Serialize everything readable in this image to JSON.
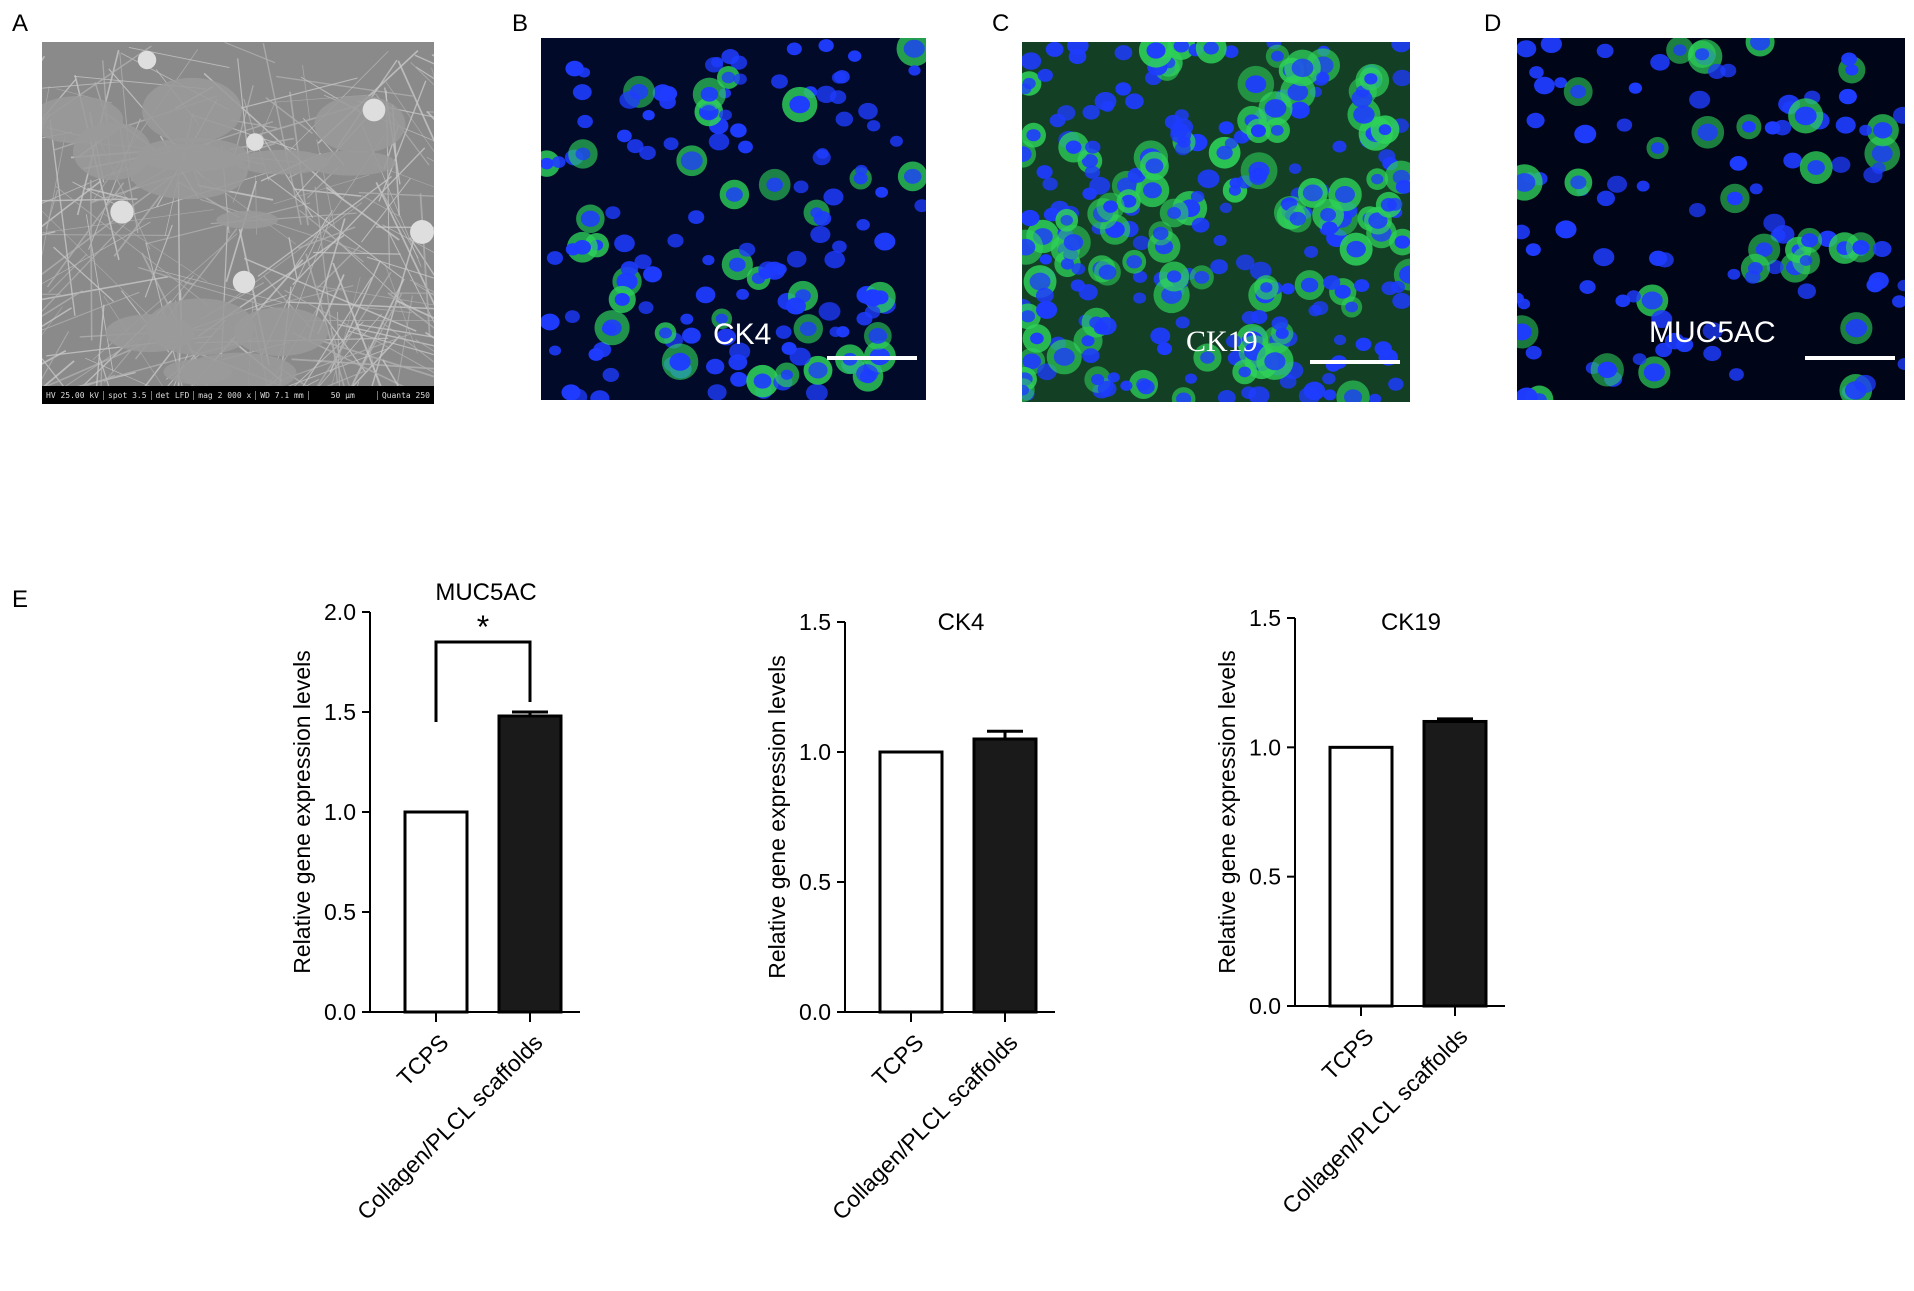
{
  "panels": {
    "A": {
      "letter": "A",
      "sem_info": [
        "HV",
        "spot",
        "det",
        "mag",
        "WD",
        "50 µm",
        "Quanta 250"
      ],
      "sem_values": [
        "25.00 kV",
        "3.5",
        "LFD",
        "2 000 x",
        "7.1 mm"
      ]
    },
    "B": {
      "letter": "B",
      "stain": "CK4"
    },
    "C": {
      "letter": "C",
      "stain": "CK19"
    },
    "D": {
      "letter": "D",
      "stain": "MUC5AC"
    },
    "E": {
      "letter": "E"
    }
  },
  "colors": {
    "nucleus": "#1e3cff",
    "stain": "#2ed15a",
    "background_dark": "#020a2a",
    "bar_fill": "#1a1a1a"
  },
  "chart_data": [
    {
      "type": "bar",
      "title": "MUC5AC",
      "ylabel": "Relative gene expression levels",
      "categories": [
        "TCPS",
        "Collagen/PLCL scaffolds"
      ],
      "values": [
        1.0,
        1.48
      ],
      "errors": [
        0,
        0.02
      ],
      "ylim": [
        0,
        2.0
      ],
      "yticks": [
        "0.0",
        "0.5",
        "1.0",
        "1.5",
        "2.0"
      ],
      "significance": "*"
    },
    {
      "type": "bar",
      "title": "CK4",
      "ylabel": "Relative gene expression levels",
      "categories": [
        "TCPS",
        "Collagen/PLCL scaffolds"
      ],
      "values": [
        1.0,
        1.05
      ],
      "errors": [
        0,
        0.03
      ],
      "ylim": [
        0,
        1.5
      ],
      "yticks": [
        "0.0",
        "0.5",
        "1.0",
        "1.5"
      ]
    },
    {
      "type": "bar",
      "title": "CK19",
      "ylabel": "Relative gene expression levels",
      "categories": [
        "TCPS",
        "Collagen/PLCL scaffolds"
      ],
      "values": [
        1.0,
        1.1
      ],
      "errors": [
        0,
        0.01
      ],
      "ylim": [
        0,
        1.5
      ],
      "yticks": [
        "0.0",
        "0.5",
        "1.0",
        "1.5"
      ]
    }
  ]
}
